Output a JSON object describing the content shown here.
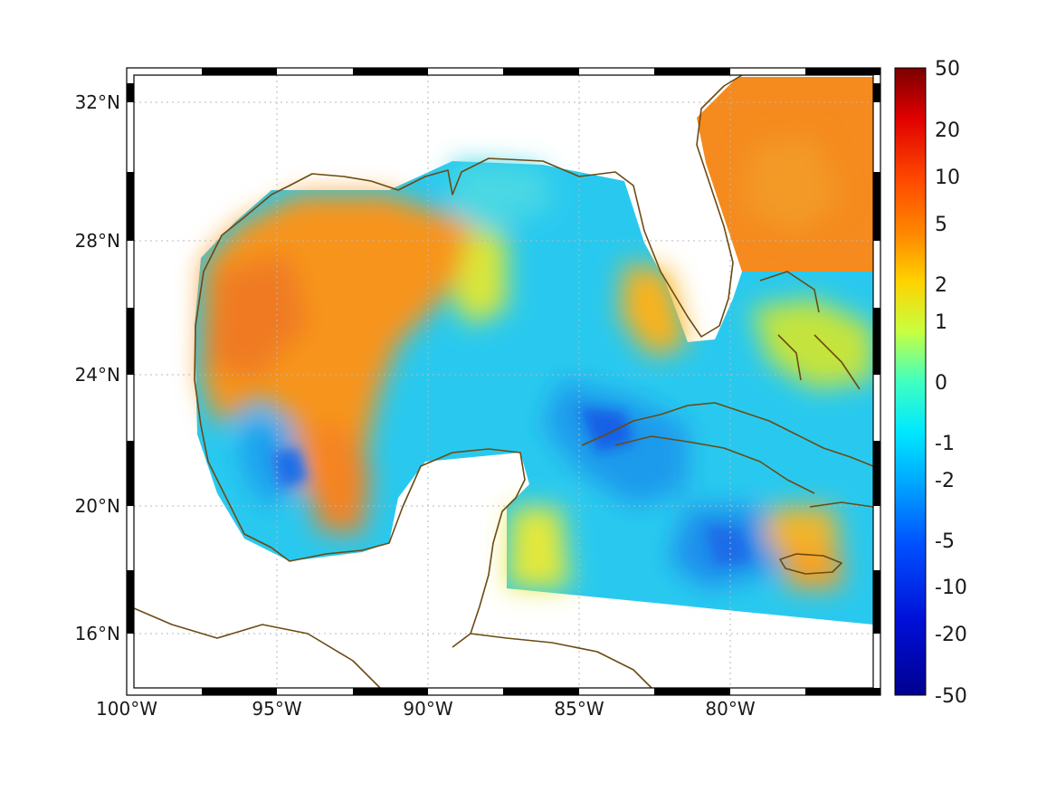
{
  "map": {
    "lon_labels": [
      "100°W",
      "95°W",
      "90°W",
      "85°W",
      "80°W"
    ],
    "lat_labels": [
      "32°N",
      "28°N",
      "24°N",
      "20°N",
      "16°N"
    ]
  },
  "colorbar": {
    "labels": [
      "50",
      "20",
      "10",
      "5",
      "2",
      "1",
      "0",
      "-1",
      "-2",
      "-5",
      "-10",
      "-20",
      "-50"
    ],
    "colors": [
      "#7a0000",
      "#e00000",
      "#ff4a00",
      "#ff8c00",
      "#ffd200",
      "#c8ff40",
      "#40ffc0",
      "#00e8ff",
      "#00a8ff",
      "#0050ff",
      "#0010d8",
      "#000090"
    ]
  },
  "colors": {
    "coastline": "#6b4a12",
    "warm_field": "#f7931e",
    "cool_field": "#1bc8f0"
  }
}
